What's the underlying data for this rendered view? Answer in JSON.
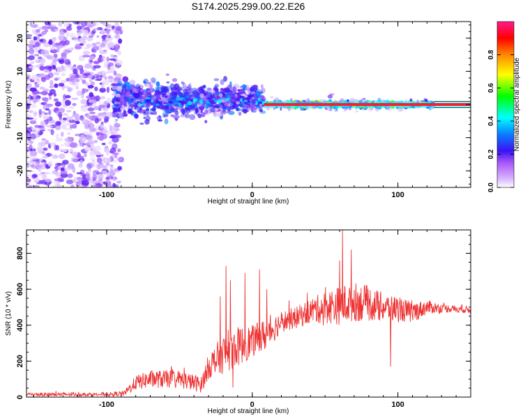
{
  "title": "S174.2025.299.00.22.E26",
  "chart_data": [
    {
      "type": "heatmap",
      "name": "spectrogram",
      "xlabel": "Height of straight line (km)",
      "ylabel": "Frequency (Hz)",
      "xlim": [
        -155,
        150
      ],
      "ylim": [
        -25,
        25
      ],
      "xticks": [
        -100,
        0,
        100
      ],
      "xtick_labels": [
        "-100",
        "0",
        "100"
      ],
      "yticks": [
        -20,
        -10,
        0,
        10,
        20
      ],
      "ytick_labels": [
        "-20",
        "-10",
        "0",
        "10",
        "20"
      ],
      "colorbar": {
        "label": "Normalized spectral amplitude",
        "range": [
          0,
          1
        ],
        "ticks": [
          0,
          0.2,
          0.4,
          0.6,
          0.8
        ],
        "tick_labels": [
          "0.0",
          "0.2",
          "0.4",
          "0.6",
          "0.8"
        ],
        "colors": [
          "#ffffff",
          "#a855f7",
          "#3a12f5",
          "#00ffff",
          "#00ff00",
          "#ffff00",
          "#ff8800",
          "#ff0000",
          "#ff1a8c"
        ]
      },
      "regions": [
        {
          "x_range": [
            -155,
            -90
          ],
          "freq_spread": 25,
          "amplitude": "low",
          "density": "high"
        },
        {
          "x_range": [
            -90,
            8
          ],
          "freq_spread": 8,
          "amplitude": "medium",
          "density": "high"
        },
        {
          "x_range": [
            8,
            125
          ],
          "freq_spread": 2,
          "amplitude": "high",
          "density": "high"
        },
        {
          "x_range": [
            125,
            150
          ],
          "freq_spread": 0.5,
          "amplitude": "high",
          "density": "line"
        }
      ]
    },
    {
      "type": "line",
      "name": "snr",
      "xlabel": "Height of straight line (km)",
      "ylabel": "SNR (10 * v/v)",
      "xlim": [
        -155,
        150
      ],
      "ylim": [
        0,
        930
      ],
      "xticks": [
        -100,
        0,
        100
      ],
      "xtick_labels": [
        "-100",
        "0",
        "100"
      ],
      "yticks": [
        0,
        200,
        400,
        600,
        800
      ],
      "ytick_labels": [
        "0",
        "200",
        "400",
        "600",
        "800"
      ],
      "series": [
        {
          "name": "SNR",
          "color": "#ee3333",
          "x": [
            -155,
            -100,
            -88,
            -80,
            -70,
            -50,
            -35,
            -30,
            -20,
            -10,
            0,
            10,
            20,
            30,
            40,
            50,
            60,
            70,
            80,
            90,
            100,
            110,
            120,
            130,
            140,
            150
          ],
          "y": [
            15,
            15,
            20,
            80,
            100,
            100,
            70,
            170,
            240,
            280,
            310,
            350,
            420,
            440,
            480,
            500,
            510,
            530,
            520,
            500,
            490,
            470,
            500,
            495,
            490,
            485
          ],
          "noise": [
            10,
            10,
            15,
            40,
            50,
            50,
            45,
            70,
            110,
            110,
            90,
            90,
            60,
            60,
            70,
            90,
            110,
            110,
            100,
            80,
            70,
            60,
            40,
            25,
            20,
            20
          ],
          "spikes": [
            [
              -22,
              560
            ],
            [
              -18,
              730
            ],
            [
              -15,
              650
            ],
            [
              -5,
              690
            ],
            [
              5,
              710
            ],
            [
              10,
              600
            ],
            [
              62,
              930
            ],
            [
              60,
              760
            ],
            [
              68,
              820
            ],
            [
              95,
              170
            ]
          ]
        }
      ]
    }
  ]
}
